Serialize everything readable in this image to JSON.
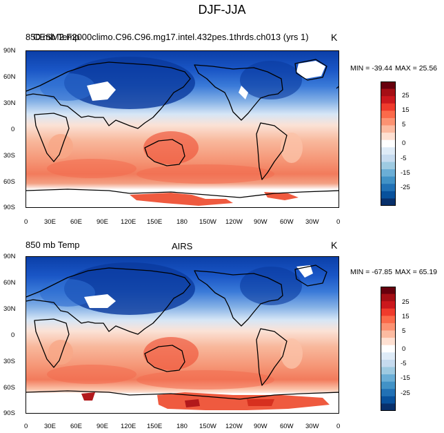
{
  "figure": {
    "title": "DJF-JJA"
  },
  "top_panel": {
    "left_label": "850 mb Temp",
    "center_label": "CESM2.F2000climo.C96.C96.mg17.intel.432pes.1thrds.ch013 (yrs 1)",
    "units": "K",
    "min_label": "MIN = -39.44",
    "max_label": "MAX =  25.56"
  },
  "bottom_panel": {
    "left_label": "850 mb Temp",
    "center_label": "AIRS",
    "units": "K",
    "min_label": "MIN = -67.85",
    "max_label": "MAX =  65.19"
  },
  "axes": {
    "lat_labels": [
      "90N",
      "60N",
      "30N",
      "0",
      "30S",
      "60S",
      "90S"
    ],
    "lon_labels": [
      "0",
      "30E",
      "60E",
      "90E",
      "120E",
      "150E",
      "180",
      "150W",
      "120W",
      "90W",
      "60W",
      "30W",
      "0"
    ]
  },
  "colorbar": {
    "labels": [
      "25",
      "15",
      "5",
      "0",
      "-5",
      "-15",
      "-25"
    ],
    "colors": [
      "#67000d",
      "#a50f15",
      "#cb181d",
      "#ef3b2c",
      "#fb6a4a",
      "#fc9272",
      "#fcbba1",
      "#fee0d2",
      "#ffffff",
      "#deebf7",
      "#c6dbef",
      "#9ecae1",
      "#6baed6",
      "#4292c6",
      "#2171b5",
      "#08519c",
      "#08306b"
    ]
  }
}
